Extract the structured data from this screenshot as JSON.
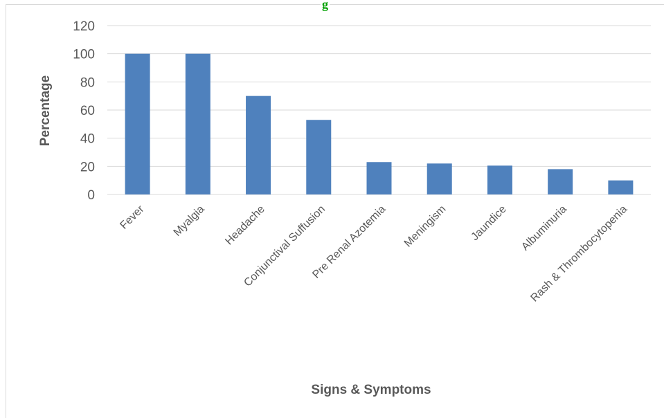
{
  "chart_data": {
    "type": "bar",
    "title_fragment": "g",
    "categories": [
      "Fever",
      "Myalgia",
      "Headache",
      "Conjunctival Suffusion",
      "Pre Renal Azotemia",
      "Meningism",
      "Jaundice",
      "Albuminuria",
      "Rash & Thrombocytopenia"
    ],
    "values": [
      100,
      100,
      70,
      53,
      23,
      22,
      20.5,
      18,
      10
    ],
    "ylim": [
      0,
      120
    ],
    "yticks": [
      0,
      20,
      40,
      60,
      80,
      100,
      120
    ],
    "ylabel": "Percentage",
    "xlabel": "Signs & Symptoms",
    "grid": true,
    "legend": "none",
    "bar_color": "#4F81BD",
    "grid_color": "#d9d9d9",
    "text_color": "#595959",
    "title_color": "#00A000"
  }
}
